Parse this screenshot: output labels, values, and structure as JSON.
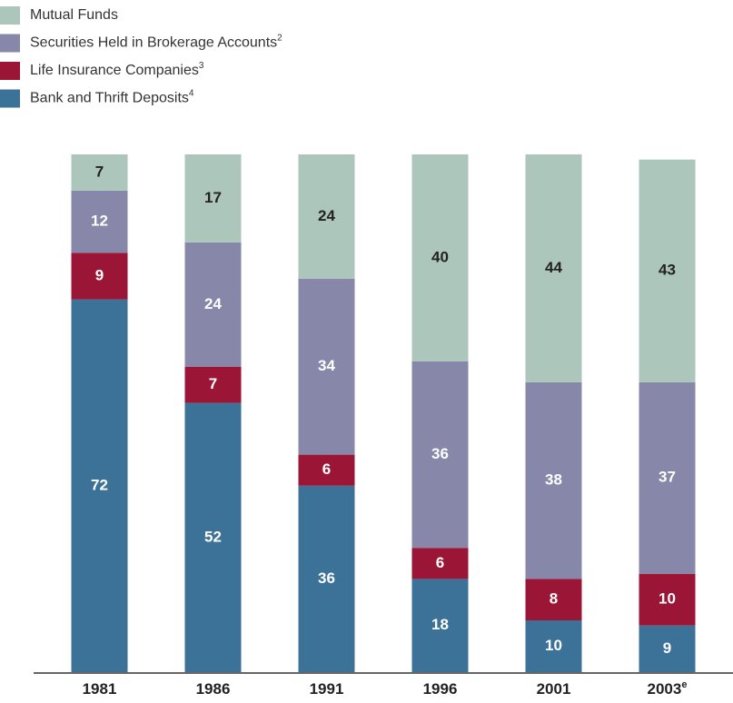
{
  "chart_data": {
    "type": "stacked_bar",
    "categories": [
      "1981",
      "1986",
      "1991",
      "1996",
      "2001",
      "2003"
    ],
    "category_notes": [
      null,
      null,
      null,
      null,
      null,
      "e"
    ],
    "series": [
      {
        "name": "Bank and Thrift Deposits",
        "footnote": "4",
        "color": "#3d7298",
        "values": [
          72,
          52,
          36,
          18,
          10,
          9
        ]
      },
      {
        "name": "Life Insurance Companies",
        "footnote": "3",
        "color": "#9b1537",
        "values": [
          9,
          7,
          6,
          6,
          8,
          10
        ]
      },
      {
        "name": "Securities Held in Brokerage Accounts",
        "footnote": "2",
        "color": "#8787aa",
        "values": [
          12,
          24,
          34,
          36,
          38,
          37
        ]
      },
      {
        "name": "Mutual Funds",
        "color": "#adc6bc",
        "values": [
          7,
          17,
          24,
          40,
          44,
          43
        ]
      }
    ],
    "ylim": [
      0,
      100
    ],
    "legend": "top-left"
  }
}
